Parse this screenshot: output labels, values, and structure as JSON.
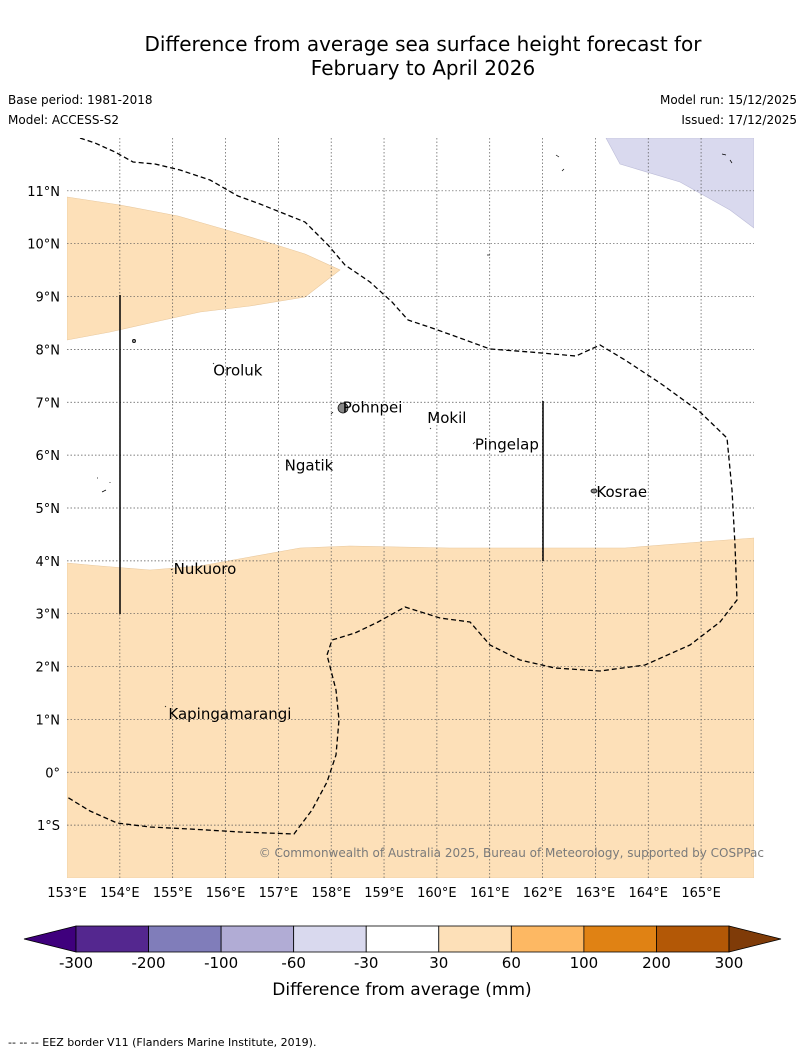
{
  "title_line1": "Difference from average sea surface height forecast for",
  "title_line2": "February to April 2026",
  "base_period": "Base period: 1981-2018",
  "model": "Model: ACCESS-S2",
  "model_run": "Model run: 15/12/2025",
  "issued": "Issued: 17/12/2025",
  "copyright": "© Commonwealth of Australia 2025, Bureau of Meteorology, supported by COSPPac",
  "footer": "--  --  -- EEZ border V11 (Flanders Marine Institute, 2019).",
  "colorbar": {
    "label": "Difference from average (mm)",
    "ticks": [
      "-300",
      "-200",
      "-100",
      "-60",
      "-30",
      "30",
      "60",
      "100",
      "200",
      "300"
    ],
    "colors": [
      "#3f007d",
      "#54278f",
      "#807dba",
      "#b1acd5",
      "#d9d9ee",
      "#ffffff",
      "#fde0b8",
      "#fdb863",
      "#e08214",
      "#b35806",
      "#7f3b08"
    ]
  },
  "map": {
    "lon_range": [
      153,
      166
    ],
    "lat_range": [
      -2,
      12
    ],
    "lon_ticks": [
      "153°E",
      "154°E",
      "155°E",
      "156°E",
      "157°E",
      "158°E",
      "159°E",
      "160°E",
      "161°E",
      "162°E",
      "163°E",
      "164°E",
      "165°E"
    ],
    "lat_ticks": [
      "11°N",
      "10°N",
      "9°N",
      "8°N",
      "7°N",
      "6°N",
      "5°N",
      "4°N",
      "3°N",
      "2°N",
      "1°N",
      "0°",
      "1°S"
    ],
    "islands": [
      {
        "name": "Oroluk",
        "lon": 155.75,
        "lat": 7.6
      },
      {
        "name": "Pohnpei",
        "lon": 158.2,
        "lat": 6.9
      },
      {
        "name": "Mokil",
        "lon": 159.8,
        "lat": 6.7
      },
      {
        "name": "Pingelap",
        "lon": 160.7,
        "lat": 6.2
      },
      {
        "name": "Ngatik",
        "lon": 157.1,
        "lat": 5.8
      },
      {
        "name": "Kosrae",
        "lon": 163.0,
        "lat": 5.3
      },
      {
        "name": "Nukuoro",
        "lon": 155.0,
        "lat": 3.85
      },
      {
        "name": "Kapingamarangi",
        "lon": 154.9,
        "lat": 1.1
      }
    ]
  }
}
